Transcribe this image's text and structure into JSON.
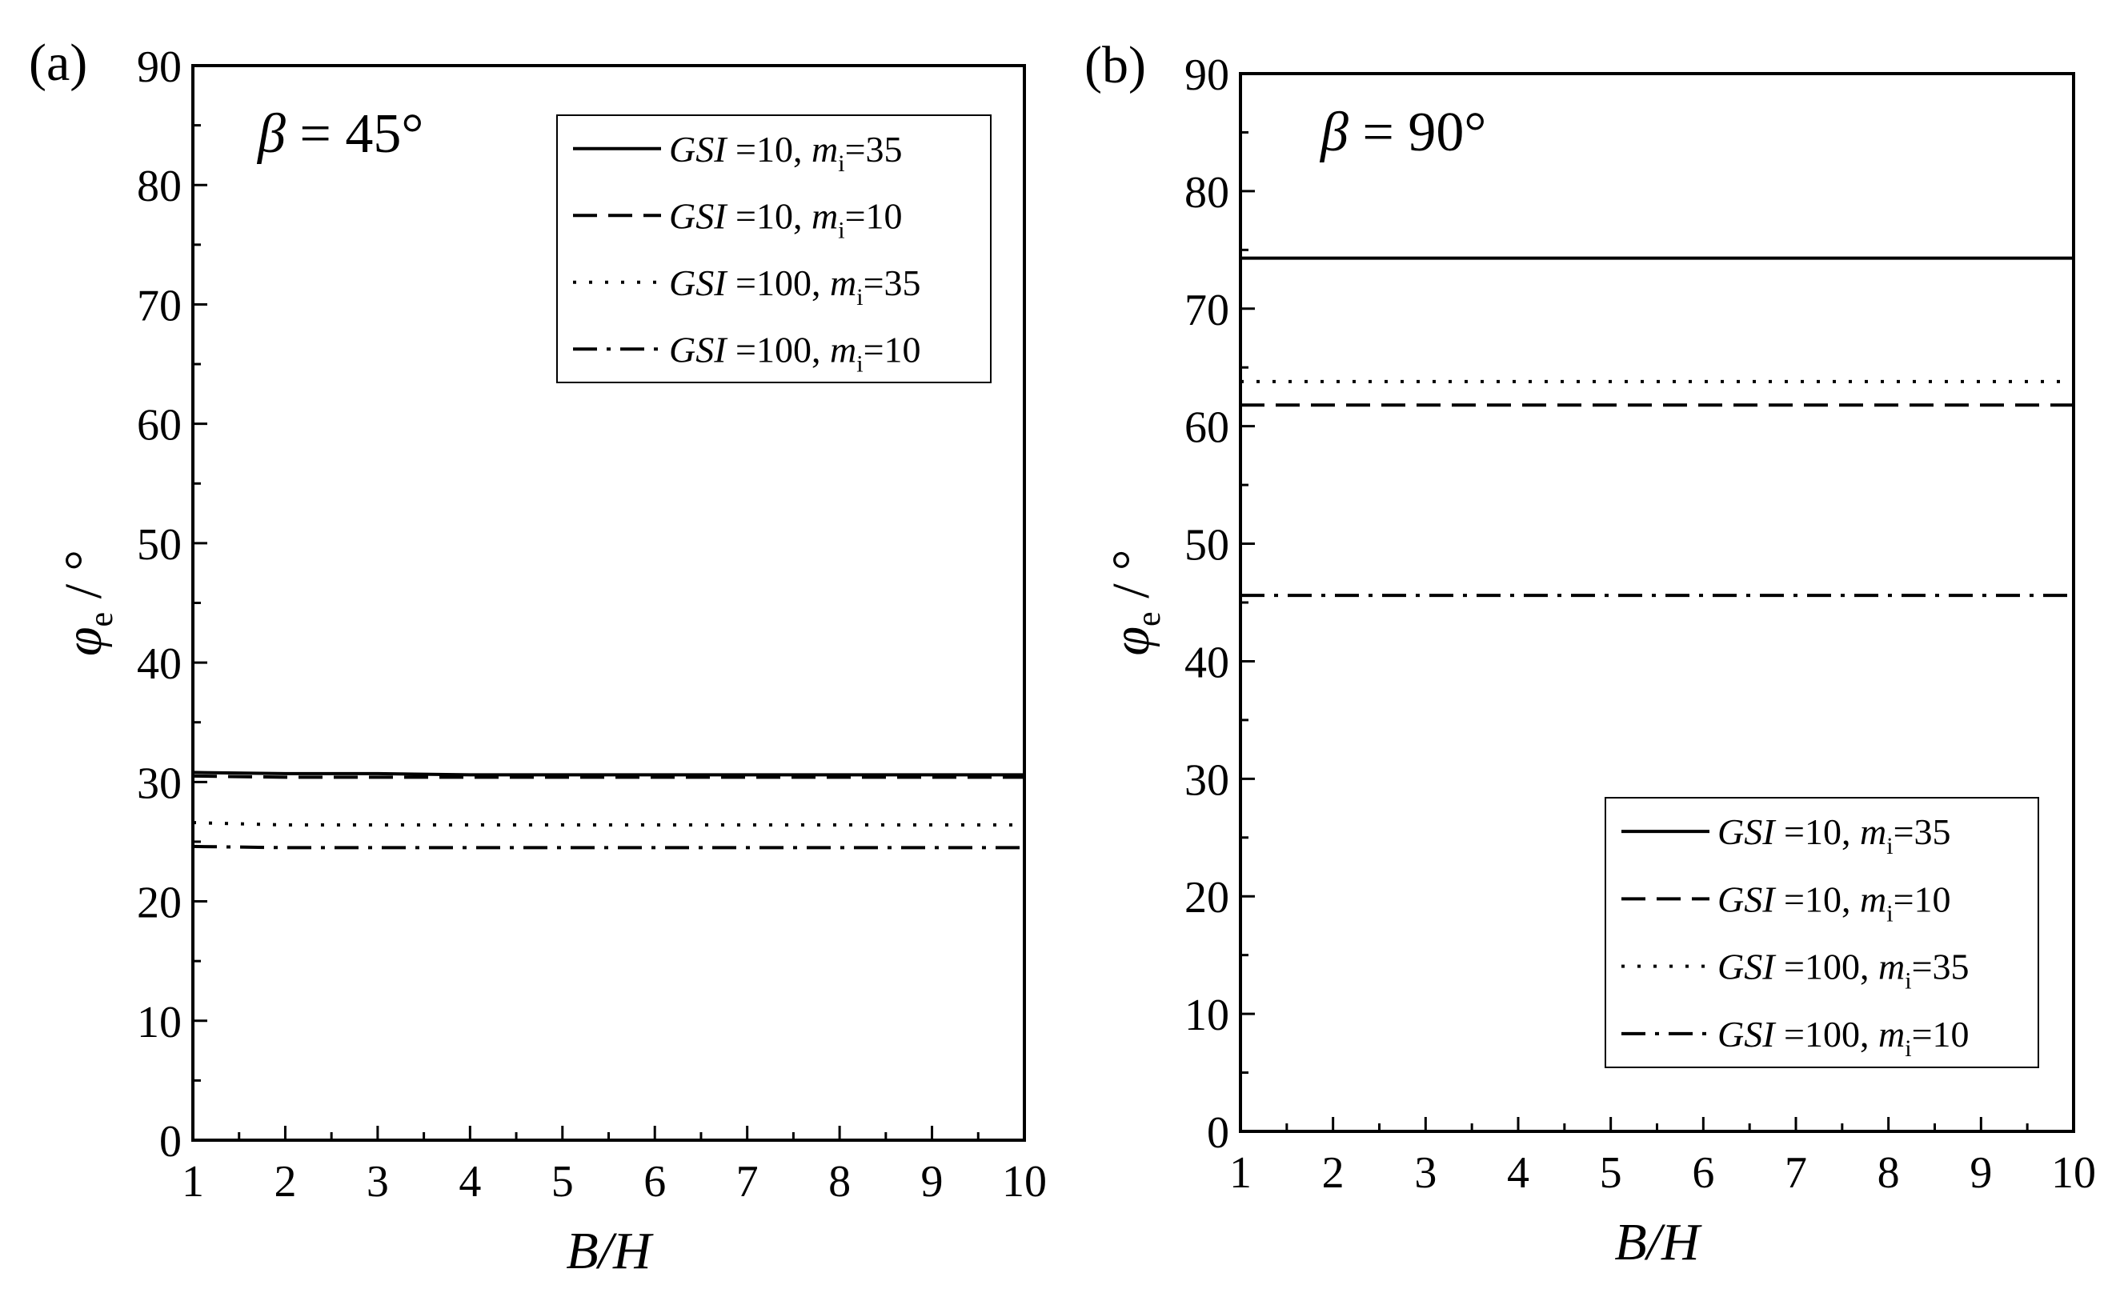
{
  "chart_data": [
    {
      "type": "line",
      "panel_label": "(a)",
      "annotation": {
        "symbol": "β",
        "text": " = 45°"
      },
      "xlabel": "B/H",
      "ylabel": "φe / °",
      "xlim": [
        1,
        10
      ],
      "ylim": [
        0,
        90
      ],
      "xticks": [
        "1",
        "2",
        "3",
        "4",
        "5",
        "6",
        "7",
        "8",
        "9",
        "10"
      ],
      "yticks": [
        "0",
        "10",
        "20",
        "30",
        "40",
        "50",
        "60",
        "70",
        "80",
        "90"
      ],
      "legend_position": "top-right",
      "grid": false,
      "series": [
        {
          "name": "GSI =10, mi=35",
          "gsi": "10",
          "mi": "35",
          "style": "solid",
          "x": [
            1,
            2,
            3,
            4,
            5,
            6,
            7,
            8,
            9,
            10
          ],
          "y": [
            30.8,
            30.7,
            30.7,
            30.6,
            30.6,
            30.6,
            30.6,
            30.6,
            30.6,
            30.6
          ]
        },
        {
          "name": "GSI =10, mi=10",
          "gsi": "10",
          "mi": "10",
          "style": "dashed",
          "x": [
            1,
            2,
            3,
            4,
            5,
            6,
            7,
            8,
            9,
            10
          ],
          "y": [
            30.5,
            30.4,
            30.4,
            30.4,
            30.4,
            30.4,
            30.4,
            30.4,
            30.4,
            30.4
          ]
        },
        {
          "name": "GSI =100, mi=35",
          "gsi": "100",
          "mi": "35",
          "style": "dotted",
          "x": [
            1,
            2,
            3,
            4,
            5,
            6,
            7,
            8,
            9,
            10
          ],
          "y": [
            26.6,
            26.4,
            26.4,
            26.4,
            26.4,
            26.4,
            26.4,
            26.4,
            26.4,
            26.4
          ]
        },
        {
          "name": "GSI =100, mi=10",
          "gsi": "100",
          "mi": "10",
          "style": "dashdot",
          "x": [
            1,
            2,
            3,
            4,
            5,
            6,
            7,
            8,
            9,
            10
          ],
          "y": [
            24.6,
            24.5,
            24.5,
            24.5,
            24.5,
            24.5,
            24.5,
            24.5,
            24.5,
            24.5
          ]
        }
      ]
    },
    {
      "type": "line",
      "panel_label": "(b)",
      "annotation": {
        "symbol": "β",
        "text": " = 90°"
      },
      "xlabel": "B/H",
      "ylabel": "φe / °",
      "xlim": [
        1,
        10
      ],
      "ylim": [
        0,
        90
      ],
      "xticks": [
        "1",
        "2",
        "3",
        "4",
        "5",
        "6",
        "7",
        "8",
        "9",
        "10"
      ],
      "yticks": [
        "0",
        "10",
        "20",
        "30",
        "40",
        "50",
        "60",
        "70",
        "80",
        "90"
      ],
      "legend_position": "bottom-right",
      "grid": false,
      "series": [
        {
          "name": "GSI =10, mi=35",
          "gsi": "10",
          "mi": "35",
          "style": "solid",
          "x": [
            1,
            2,
            3,
            4,
            5,
            6,
            7,
            8,
            9,
            10
          ],
          "y": [
            74.3,
            74.3,
            74.3,
            74.3,
            74.3,
            74.3,
            74.3,
            74.3,
            74.3,
            74.3
          ]
        },
        {
          "name": "GSI =10, mi=10",
          "gsi": "10",
          "mi": "10",
          "style": "dashed",
          "x": [
            1,
            2,
            3,
            4,
            5,
            6,
            7,
            8,
            9,
            10
          ],
          "y": [
            61.8,
            61.8,
            61.8,
            61.8,
            61.8,
            61.8,
            61.8,
            61.8,
            61.8,
            61.8
          ]
        },
        {
          "name": "GSI =100, mi=35",
          "gsi": "100",
          "mi": "35",
          "style": "dotted",
          "x": [
            1,
            2,
            3,
            4,
            5,
            6,
            7,
            8,
            9,
            10
          ],
          "y": [
            63.8,
            63.8,
            63.8,
            63.8,
            63.8,
            63.8,
            63.8,
            63.8,
            63.8,
            63.8
          ]
        },
        {
          "name": "GSI =100, mi=10",
          "gsi": "100",
          "mi": "10",
          "style": "dashdot",
          "x": [
            1,
            2,
            3,
            4,
            5,
            6,
            7,
            8,
            9,
            10
          ],
          "y": [
            45.6,
            45.6,
            45.6,
            45.6,
            45.6,
            45.6,
            45.6,
            45.6,
            45.6,
            45.6
          ]
        }
      ]
    }
  ]
}
